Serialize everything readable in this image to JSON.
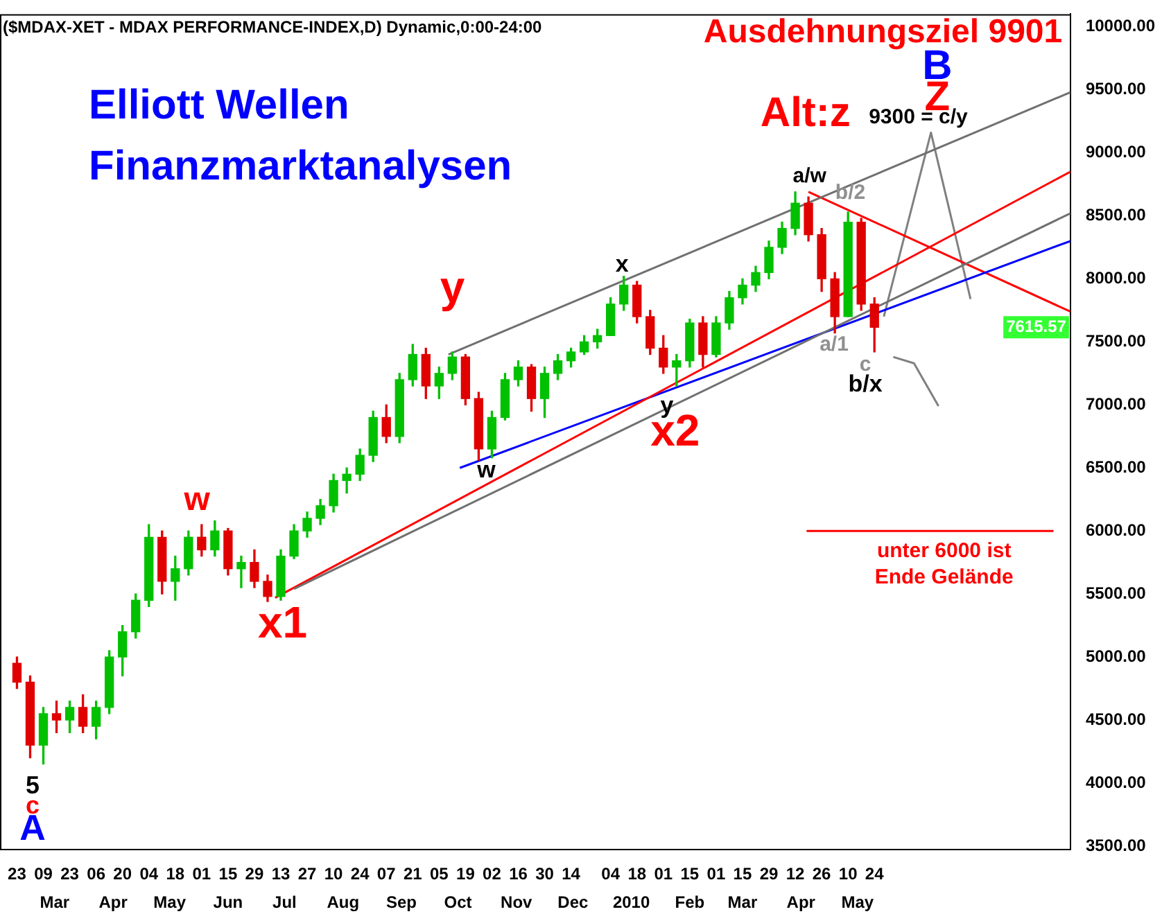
{
  "chart_data": {
    "type": "candlestick",
    "title": "($MDAX-XET - MDAX PERFORMANCE-INDEX,D) Dynamic,0:00-24:00",
    "subtitle": "Elliott Wellen\nFinanzmarktanalysen",
    "x": [
      "2009-02-23",
      "2009-03-02",
      "2009-03-09",
      "2009-03-16",
      "2009-03-23",
      "2009-03-30",
      "2009-04-06",
      "2009-04-13",
      "2009-04-20",
      "2009-04-27",
      "2009-05-04",
      "2009-05-11",
      "2009-05-18",
      "2009-05-25",
      "2009-06-01",
      "2009-06-08",
      "2009-06-15",
      "2009-06-22",
      "2009-06-29",
      "2009-07-06",
      "2009-07-13",
      "2009-07-20",
      "2009-07-27",
      "2009-08-03",
      "2009-08-10",
      "2009-08-17",
      "2009-08-24",
      "2009-08-31",
      "2009-09-07",
      "2009-09-14",
      "2009-09-21",
      "2009-09-28",
      "2009-10-05",
      "2009-10-12",
      "2009-10-19",
      "2009-10-26",
      "2009-11-02",
      "2009-11-09",
      "2009-11-16",
      "2009-11-23",
      "2009-11-30",
      "2009-12-07",
      "2009-12-14",
      "2009-12-21",
      "2009-12-28",
      "2010-01-04",
      "2010-01-11",
      "2010-01-18",
      "2010-01-25",
      "2010-02-01",
      "2010-02-08",
      "2010-02-15",
      "2010-02-22",
      "2010-03-01",
      "2010-03-08",
      "2010-03-15",
      "2010-03-22",
      "2010-03-29",
      "2010-04-05",
      "2010-04-12",
      "2010-04-19",
      "2010-04-26",
      "2010-05-03",
      "2010-05-10",
      "2010-05-17",
      "2010-05-24"
    ],
    "ohlc": [
      [
        4950,
        5000,
        4750,
        4800
      ],
      [
        4800,
        4850,
        4200,
        4300
      ],
      [
        4300,
        4600,
        4150,
        4550
      ],
      [
        4550,
        4650,
        4400,
        4500
      ],
      [
        4500,
        4650,
        4400,
        4600
      ],
      [
        4600,
        4700,
        4400,
        4450
      ],
      [
        4450,
        4650,
        4350,
        4600
      ],
      [
        4600,
        5050,
        4550,
        5000
      ],
      [
        5000,
        5250,
        4850,
        5200
      ],
      [
        5200,
        5500,
        5150,
        5450
      ],
      [
        5450,
        6050,
        5400,
        5950
      ],
      [
        5950,
        6000,
        5500,
        5600
      ],
      [
        5600,
        5800,
        5450,
        5700
      ],
      [
        5700,
        6000,
        5650,
        5950
      ],
      [
        5950,
        6050,
        5800,
        5850
      ],
      [
        5850,
        6080,
        5800,
        6000
      ],
      [
        6000,
        6020,
        5650,
        5700
      ],
      [
        5700,
        5800,
        5550,
        5750
      ],
      [
        5750,
        5850,
        5550,
        5600
      ],
      [
        5600,
        5650,
        5440,
        5480
      ],
      [
        5480,
        5850,
        5450,
        5800
      ],
      [
        5800,
        6050,
        5780,
        6000
      ],
      [
        6000,
        6150,
        5950,
        6100
      ],
      [
        6100,
        6250,
        6050,
        6200
      ],
      [
        6200,
        6450,
        6150,
        6400
      ],
      [
        6400,
        6500,
        6300,
        6450
      ],
      [
        6450,
        6650,
        6400,
        6600
      ],
      [
        6600,
        6950,
        6550,
        6900
      ],
      [
        6900,
        7000,
        6700,
        6750
      ],
      [
        6750,
        7250,
        6700,
        7200
      ],
      [
        7200,
        7480,
        7150,
        7400
      ],
      [
        7400,
        7450,
        7050,
        7150
      ],
      [
        7150,
        7300,
        7050,
        7250
      ],
      [
        7250,
        7420,
        7200,
        7380
      ],
      [
        7380,
        7400,
        7000,
        7050
      ],
      [
        7050,
        7100,
        6560,
        6650
      ],
      [
        6650,
        6950,
        6580,
        6900
      ],
      [
        6900,
        7250,
        6880,
        7200
      ],
      [
        7200,
        7350,
        7150,
        7300
      ],
      [
        7300,
        7320,
        6950,
        7050
      ],
      [
        7050,
        7300,
        6900,
        7250
      ],
      [
        7250,
        7400,
        7200,
        7350
      ],
      [
        7350,
        7450,
        7300,
        7420
      ],
      [
        7420,
        7550,
        7400,
        7500
      ],
      [
        7500,
        7600,
        7450,
        7550
      ],
      [
        7550,
        7850,
        7550,
        7800
      ],
      [
        7800,
        8020,
        7750,
        7950
      ],
      [
        7950,
        7980,
        7650,
        7700
      ],
      [
        7700,
        7750,
        7400,
        7450
      ],
      [
        7450,
        7550,
        7250,
        7300
      ],
      [
        7300,
        7400,
        7150,
        7350
      ],
      [
        7350,
        7680,
        7300,
        7650
      ],
      [
        7650,
        7700,
        7300,
        7400
      ],
      [
        7400,
        7700,
        7380,
        7650
      ],
      [
        7650,
        7900,
        7600,
        7850
      ],
      [
        7850,
        8000,
        7800,
        7950
      ],
      [
        7950,
        8100,
        7900,
        8050
      ],
      [
        8050,
        8300,
        8000,
        8250
      ],
      [
        8250,
        8450,
        8200,
        8400
      ],
      [
        8400,
        8690,
        8350,
        8600
      ],
      [
        8600,
        8650,
        8300,
        8350
      ],
      [
        8350,
        8400,
        7900,
        8000
      ],
      [
        8000,
        8050,
        7570,
        7700
      ],
      [
        7700,
        8530,
        7700,
        8450
      ],
      [
        8450,
        8480,
        7750,
        7800
      ],
      [
        7800,
        7850,
        7420,
        7615.57
      ]
    ],
    "colors": [
      "#e00000",
      "#e00000",
      "#00c000",
      "#e00000",
      "#00c000",
      "#e00000",
      "#00c000",
      "#00c000",
      "#00c000",
      "#00c000",
      "#00c000",
      "#e00000",
      "#00c000",
      "#00c000",
      "#e00000",
      "#00c000",
      "#e00000",
      "#00c000",
      "#e00000",
      "#e00000",
      "#00c000",
      "#00c000",
      "#00c000",
      "#00c000",
      "#00c000",
      "#00c000",
      "#00c000",
      "#00c000",
      "#e00000",
      "#00c000",
      "#00c000",
      "#e00000",
      "#00c000",
      "#00c000",
      "#e00000",
      "#e00000",
      "#00c000",
      "#00c000",
      "#00c000",
      "#e00000",
      "#00c000",
      "#00c000",
      "#00c000",
      "#00c000",
      "#00c000",
      "#00c000",
      "#00c000",
      "#e00000",
      "#e00000",
      "#e00000",
      "#00c000",
      "#00c000",
      "#e00000",
      "#00c000",
      "#00c000",
      "#00c000",
      "#00c000",
      "#00c000",
      "#00c000",
      "#00c000",
      "#e00000",
      "#e00000",
      "#e00000",
      "#00c000",
      "#e00000",
      "#e00000"
    ],
    "series": [
      {
        "type": "line",
        "color": "#707070",
        "x": [
          "2009-10-10",
          "2010-09-05"
        ],
        "values": [
          7400,
          9480
        ]
      },
      {
        "type": "line",
        "color": "#707070",
        "x": [
          "2009-07-20",
          "2010-09-05"
        ],
        "values": [
          5540,
          8520
        ]
      },
      {
        "type": "line",
        "color": "#ff0000",
        "x": [
          "2009-07-10",
          "2010-09-05"
        ],
        "values": [
          5470,
          8850
        ]
      },
      {
        "type": "line",
        "color": "#0000ff",
        "x": [
          "2009-10-16",
          "2010-09-05"
        ],
        "values": [
          6500,
          8300
        ]
      },
      {
        "type": "line",
        "color": "#ff0000",
        "x": [
          "2010-04-19",
          "2010-09-05"
        ],
        "values": [
          8690,
          7740
        ]
      },
      {
        "type": "line",
        "color": "#ff0000",
        "x": [
          "2010-04-18",
          "2010-08-27"
        ],
        "values": [
          6000,
          6000
        ]
      },
      {
        "type": "line",
        "color": "#808080",
        "x": [
          "2010-05-29",
          "2010-06-23",
          "2010-07-14"
        ],
        "values": [
          7700,
          9160,
          7840
        ]
      },
      {
        "type": "line",
        "color": "#808080",
        "x": [
          "2010-06-03",
          "2010-06-14",
          "2010-06-27"
        ],
        "values": [
          7380,
          7330,
          6990
        ]
      }
    ],
    "annotations": [
      "Ausdehnungsziel 9901",
      "5",
      "c",
      "A",
      "w",
      "x1",
      "y",
      "w",
      "x",
      "y",
      "x2",
      "Alt:z",
      "a/w",
      "b/2",
      "a/1",
      "c",
      "b/x",
      "9300 = c/y",
      "B",
      "Z",
      "unter 6000 ist\nEnde Gelände",
      "7615.57"
    ],
    "xlim": [
      "2009-02-14",
      "2010-09-05"
    ],
    "xticks": [
      {
        "value": "2009-02-23",
        "label": "23"
      },
      {
        "value": "2009-03-09",
        "label": "09"
      },
      {
        "value": "2009-03-23",
        "label": "23"
      },
      {
        "value": "2009-04-06",
        "label": "06"
      },
      {
        "value": "2009-04-20",
        "label": "20"
      },
      {
        "value": "2009-05-04",
        "label": "04"
      },
      {
        "value": "2009-05-18",
        "label": "18"
      },
      {
        "value": "2009-06-01",
        "label": "01"
      },
      {
        "value": "2009-06-15",
        "label": "15"
      },
      {
        "value": "2009-06-29",
        "label": "29"
      },
      {
        "value": "2009-07-13",
        "label": "13"
      },
      {
        "value": "2009-07-27",
        "label": "27"
      },
      {
        "value": "2009-08-10",
        "label": "10"
      },
      {
        "value": "2009-08-24",
        "label": "24"
      },
      {
        "value": "2009-09-07",
        "label": "07"
      },
      {
        "value": "2009-09-21",
        "label": "21"
      },
      {
        "value": "2009-10-05",
        "label": "05"
      },
      {
        "value": "2009-10-19",
        "label": "19"
      },
      {
        "value": "2009-11-02",
        "label": "02"
      },
      {
        "value": "2009-11-16",
        "label": "16"
      },
      {
        "value": "2009-11-30",
        "label": "30"
      },
      {
        "value": "2009-12-14",
        "label": "14"
      },
      {
        "value": "2010-01-04",
        "label": "04"
      },
      {
        "value": "2010-01-18",
        "label": "18"
      },
      {
        "value": "2010-02-01",
        "label": "01"
      },
      {
        "value": "2010-02-15",
        "label": "15"
      },
      {
        "value": "2010-03-01",
        "label": "01"
      },
      {
        "value": "2010-03-15",
        "label": "15"
      },
      {
        "value": "2010-03-29",
        "label": "29"
      },
      {
        "value": "2010-04-12",
        "label": "12"
      },
      {
        "value": "2010-04-26",
        "label": "26"
      },
      {
        "value": "2010-05-10",
        "label": "10"
      },
      {
        "value": "2010-05-24",
        "label": "24"
      }
    ],
    "x2lim": [
      "2009-02-14",
      "2010-09-05"
    ],
    "x2ticks": [
      {
        "value": "2009-03-15",
        "label": "Mar"
      },
      {
        "value": "2009-04-15",
        "label": "Apr"
      },
      {
        "value": "2009-05-15",
        "label": "May"
      },
      {
        "value": "2009-06-15",
        "label": "Jun"
      },
      {
        "value": "2009-07-15",
        "label": "Jul"
      },
      {
        "value": "2009-08-15",
        "label": "Aug"
      },
      {
        "value": "2009-09-15",
        "label": "Sep"
      },
      {
        "value": "2009-10-15",
        "label": "Oct"
      },
      {
        "value": "2009-11-15",
        "label": "Nov"
      },
      {
        "value": "2009-12-15",
        "label": "Dec"
      },
      {
        "value": "2010-01-15",
        "label": "2010"
      },
      {
        "value": "2010-02-15",
        "label": "Feb"
      },
      {
        "value": "2010-03-15",
        "label": "Mar"
      },
      {
        "value": "2010-04-15",
        "label": "Apr"
      },
      {
        "value": "2010-05-15",
        "label": "May"
      }
    ],
    "ylim": [
      3470,
      10100
    ],
    "yticks": [
      {
        "value": 3500,
        "label": "3500.00"
      },
      {
        "value": 4000,
        "label": "4000.00"
      },
      {
        "value": 4500,
        "label": "4500.00"
      },
      {
        "value": 5000,
        "label": "5000.00"
      },
      {
        "value": 5500,
        "label": "5500.00"
      },
      {
        "value": 6000,
        "label": "6000.00"
      },
      {
        "value": 6500,
        "label": "6500.00"
      },
      {
        "value": 7000,
        "label": "7000.00"
      },
      {
        "value": 7500,
        "label": "7500.00"
      },
      {
        "value": 8000,
        "label": "8000.00"
      },
      {
        "value": 8500,
        "label": "8500.00"
      },
      {
        "value": 9000,
        "label": "9000.00"
      },
      {
        "value": 9500,
        "label": "9500.00"
      },
      {
        "value": 10000,
        "label": "10000.00"
      }
    ]
  }
}
